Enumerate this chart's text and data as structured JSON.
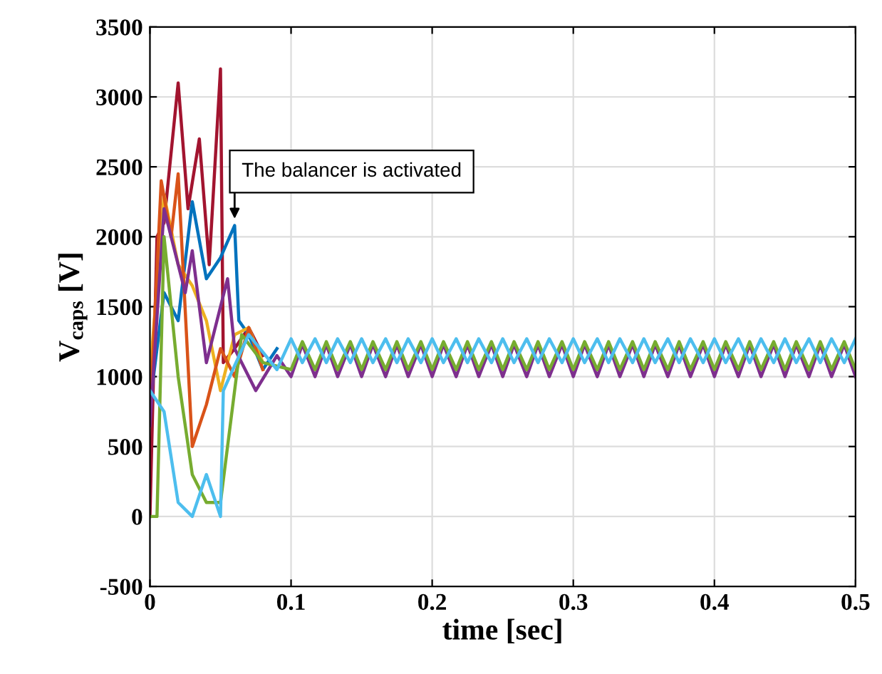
{
  "chart_data": {
    "type": "line",
    "xlabel": "time [sec]",
    "ylabel": "V$_{caps}$ [V]",
    "xlim": [
      0,
      0.5
    ],
    "ylim": [
      -500,
      3500
    ],
    "xticks": [
      0,
      0.1,
      0.2,
      0.3,
      0.4,
      0.5
    ],
    "yticks": [
      -500,
      0,
      500,
      1000,
      1500,
      2000,
      2500,
      3000,
      3500
    ],
    "grid": true,
    "marker": "none",
    "line_style": "solid",
    "annotations": [
      {
        "text": "The balancer is activated",
        "x": 0.06,
        "y": 2100
      }
    ],
    "series": [
      {
        "color": "#a2142f",
        "x": [
          0,
          0.005,
          0.01,
          0.02,
          0.027,
          0.035,
          0.042,
          0.05,
          0.052,
          0.06,
          0.07,
          0.08
        ],
        "values": [
          0,
          2000,
          2100,
          3100,
          2200,
          2700,
          1800,
          3200,
          1100,
          1200,
          1350,
          1150
        ]
      },
      {
        "color": "#0072bd",
        "x": [
          0,
          0.01,
          0.02,
          0.03,
          0.04,
          0.05,
          0.06,
          0.063,
          0.07,
          0.08,
          0.09
        ],
        "values": [
          800,
          1600,
          1400,
          2250,
          1700,
          1850,
          2080,
          1400,
          1300,
          1050,
          1200
        ]
      },
      {
        "color": "#edb120",
        "x": [
          0,
          0.01,
          0.02,
          0.03,
          0.04,
          0.05,
          0.06,
          0.07,
          0.08
        ],
        "values": [
          1000,
          2300,
          1800,
          1650,
          1400,
          900,
          1300,
          1350,
          1100
        ]
      },
      {
        "color": "#d95319",
        "x": [
          0,
          0.008,
          0.015,
          0.02,
          0.03,
          0.04,
          0.05,
          0.06,
          0.07,
          0.08
        ],
        "values": [
          700,
          2400,
          2000,
          2450,
          500,
          800,
          1200,
          1000,
          1350,
          1050
        ]
      },
      {
        "color": "#7e2f8e",
        "x": [
          0,
          0.01,
          0.025,
          0.03,
          0.04,
          0.055,
          0.06,
          0.075,
          0.09,
          0.1,
          0.108,
          0.117,
          0.125,
          0.133,
          0.142,
          0.15,
          0.158,
          0.167,
          0.175,
          0.183,
          0.192,
          0.2,
          0.208,
          0.217,
          0.225,
          0.233,
          0.242,
          0.25,
          0.258,
          0.267,
          0.275,
          0.283,
          0.292,
          0.3,
          0.308,
          0.317,
          0.325,
          0.333,
          0.342,
          0.35,
          0.358,
          0.367,
          0.375,
          0.383,
          0.392,
          0.4,
          0.408,
          0.417,
          0.425,
          0.433,
          0.442,
          0.45,
          0.458,
          0.467,
          0.475,
          0.483,
          0.492,
          0.5
        ],
        "values": [
          650,
          2200,
          1600,
          1900,
          1100,
          1700,
          1200,
          900,
          1150,
          1000,
          1230,
          1000,
          1230,
          1000,
          1230,
          1000,
          1230,
          1000,
          1230,
          1000,
          1230,
          1000,
          1230,
          1000,
          1230,
          1000,
          1230,
          1000,
          1230,
          1000,
          1230,
          1000,
          1230,
          1000,
          1230,
          1000,
          1230,
          1000,
          1230,
          1000,
          1230,
          1000,
          1230,
          1000,
          1230,
          1000,
          1230,
          1000,
          1230,
          1000,
          1230,
          1000,
          1230,
          1000,
          1230,
          1000,
          1230,
          1000
        ]
      },
      {
        "color": "#77ac30",
        "x": [
          0,
          0.005,
          0.01,
          0.02,
          0.03,
          0.04,
          0.05,
          0.055,
          0.065,
          0.08,
          0.1,
          0.108,
          0.117,
          0.125,
          0.133,
          0.142,
          0.15,
          0.158,
          0.167,
          0.175,
          0.183,
          0.192,
          0.2,
          0.208,
          0.217,
          0.225,
          0.233,
          0.242,
          0.25,
          0.258,
          0.267,
          0.275,
          0.283,
          0.292,
          0.3,
          0.308,
          0.317,
          0.325,
          0.333,
          0.342,
          0.35,
          0.358,
          0.367,
          0.375,
          0.383,
          0.392,
          0.4,
          0.408,
          0.417,
          0.425,
          0.433,
          0.442,
          0.45,
          0.458,
          0.467,
          0.475,
          0.483,
          0.492,
          0.5
        ],
        "values": [
          0,
          0,
          2000,
          1000,
          300,
          100,
          100,
          500,
          1300,
          1100,
          1050,
          1250,
          1050,
          1250,
          1050,
          1250,
          1050,
          1250,
          1050,
          1250,
          1050,
          1250,
          1050,
          1250,
          1050,
          1250,
          1050,
          1250,
          1050,
          1250,
          1050,
          1250,
          1050,
          1250,
          1050,
          1250,
          1050,
          1250,
          1050,
          1250,
          1050,
          1250,
          1050,
          1250,
          1050,
          1250,
          1050,
          1250,
          1050,
          1250,
          1050,
          1250,
          1050,
          1250,
          1050,
          1250,
          1050,
          1250,
          1050
        ]
      },
      {
        "color": "#4dbeee",
        "x": [
          0,
          0.01,
          0.02,
          0.03,
          0.04,
          0.05,
          0.052,
          0.07,
          0.09,
          0.1,
          0.108,
          0.117,
          0.125,
          0.133,
          0.142,
          0.15,
          0.158,
          0.167,
          0.175,
          0.183,
          0.192,
          0.2,
          0.208,
          0.217,
          0.225,
          0.233,
          0.242,
          0.25,
          0.258,
          0.267,
          0.275,
          0.283,
          0.292,
          0.3,
          0.308,
          0.317,
          0.325,
          0.333,
          0.342,
          0.35,
          0.358,
          0.367,
          0.375,
          0.383,
          0.392,
          0.4,
          0.408,
          0.417,
          0.425,
          0.433,
          0.442,
          0.45,
          0.458,
          0.467,
          0.475,
          0.483,
          0.492,
          0.5
        ],
        "values": [
          900,
          750,
          100,
          0,
          300,
          0,
          900,
          1300,
          1050,
          1270,
          1100,
          1270,
          1100,
          1270,
          1100,
          1270,
          1100,
          1270,
          1100,
          1270,
          1100,
          1270,
          1100,
          1270,
          1100,
          1270,
          1100,
          1270,
          1100,
          1270,
          1100,
          1270,
          1100,
          1270,
          1100,
          1270,
          1100,
          1270,
          1100,
          1270,
          1100,
          1270,
          1100,
          1270,
          1100,
          1270,
          1100,
          1270,
          1100,
          1270,
          1100,
          1270,
          1100,
          1270,
          1100,
          1270,
          1100,
          1270
        ]
      }
    ]
  }
}
